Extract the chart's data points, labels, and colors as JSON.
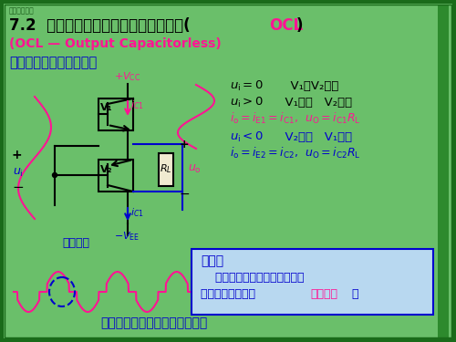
{
  "bg_color": "#6abf6a",
  "border_color": "#2d8a2d",
  "watermark": "模拟电子技术",
  "title_black": "7.2  乙类双电源互补对称功率放大电路(",
  "title_ocl": "OCL",
  "title_end": ")",
  "subtitle": "(OCL — Output Capacitorless)",
  "section": "一、电路组成及工作原理",
  "problem_title": "问题：",
  "problem_line1": "    当输入电压小于死区电压时，",
  "problem_line2": "三极管截止，引起 ",
  "problem_highlight": "交越失真",
  "problem_dot": "。",
  "bottom_text": "输入信号幅度越小失真越明显。",
  "label_crossover": "交越失真",
  "colors": {
    "black": "#000000",
    "pink": "#ff1493",
    "blue": "#0000cd",
    "dark_blue": "#0000cd",
    "green_bg": "#6abf6a",
    "light_blue_box": "#b8d8f0",
    "dark_green_border": "#1a6b1a",
    "ocl_pink": "#ff1493",
    "subtitle_pink": "#ff1493",
    "section_blue": "#0000cd",
    "orange": "#ff8c00"
  }
}
